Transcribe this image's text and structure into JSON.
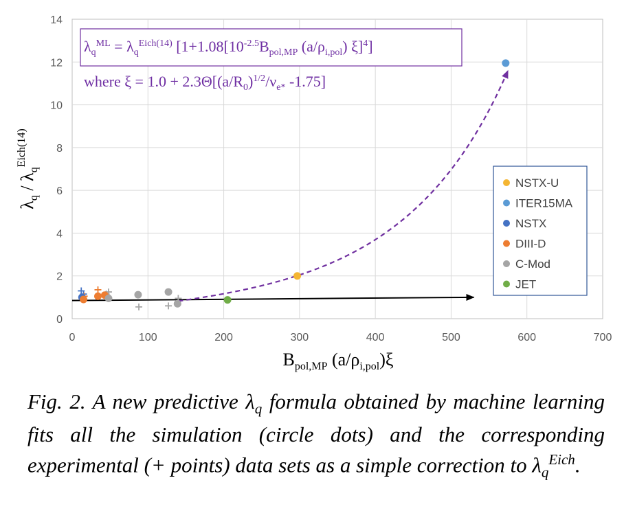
{
  "chart_data": {
    "type": "scatter",
    "xlabel": "B_pol,MP (a/ρ_i,pol)ξ",
    "ylabel": "λ_q / λ_q^Eich(14)",
    "xlim": [
      0,
      700
    ],
    "ylim": [
      0,
      14
    ],
    "x_ticks": [
      "0",
      "100",
      "200",
      "300",
      "400",
      "500",
      "600",
      "700"
    ],
    "y_ticks": [
      "0",
      "2",
      "4",
      "6",
      "8",
      "10",
      "12",
      "14"
    ],
    "grid": "major gridlines on both axes",
    "legend_position": "right",
    "series": [
      {
        "name": "NSTX-U",
        "color": "#f4b532",
        "marker": "circle",
        "points": [
          [
            297,
            2.0
          ]
        ]
      },
      {
        "name": "ITER15MA",
        "color": "#5b9bd5",
        "marker": "circle",
        "points": [
          [
            572,
            11.95
          ]
        ]
      },
      {
        "name": "NSTX",
        "color": "#4472c4",
        "marker": "circle",
        "points": [
          [
            13,
            1.0
          ]
        ]
      },
      {
        "name": "DIII-D",
        "color": "#ed7d31",
        "marker": "circle",
        "points": [
          [
            15,
            0.9
          ],
          [
            34,
            1.05
          ],
          [
            43,
            1.1
          ]
        ]
      },
      {
        "name": "C-Mod",
        "color": "#a5a5a5",
        "marker": "circle",
        "points": [
          [
            48,
            0.95
          ],
          [
            87,
            1.12
          ],
          [
            127,
            1.25
          ],
          [
            139,
            0.7
          ]
        ]
      },
      {
        "name": "JET",
        "color": "#70ad47",
        "marker": "circle",
        "points": [
          [
            205,
            0.88
          ]
        ]
      }
    ],
    "experimental_points": [
      {
        "series": "NSTX",
        "color": "#4472c4",
        "points": [
          [
            12,
            1.3
          ],
          [
            15,
            1.15
          ]
        ]
      },
      {
        "series": "DIII-D",
        "color": "#ed7d31",
        "points": [
          [
            34,
            1.35
          ],
          [
            16,
            1.05
          ]
        ]
      },
      {
        "series": "C-Mod",
        "color": "#a5a5a5",
        "points": [
          [
            48,
            1.25
          ],
          [
            88,
            0.55
          ],
          [
            127,
            0.6
          ],
          [
            140,
            0.95
          ],
          [
            45,
            1.15
          ]
        ]
      }
    ],
    "annotations": {
      "formula_line1": "λqML = λqEich(14) [1+1.08[10-2.5Bpol,MP (a/ρi,pol) ξ]4]",
      "formula_line2": "where ξ = 1.0 + 2.3Θ[(a/R0)1/2/νe* -1.75]",
      "arrow_solid": {
        "from": [
          0,
          0.85
        ],
        "to": [
          530,
          1.0
        ],
        "color": "#000000"
      },
      "curve_dashed": {
        "color": "#7030a0"
      }
    }
  },
  "caption": "Fig. 2. A new predictive λq formula obtained by machine learning fits all the simulation (circle dots) and the corresponding experimental (+ points) data sets as a simple correction to λqEich."
}
